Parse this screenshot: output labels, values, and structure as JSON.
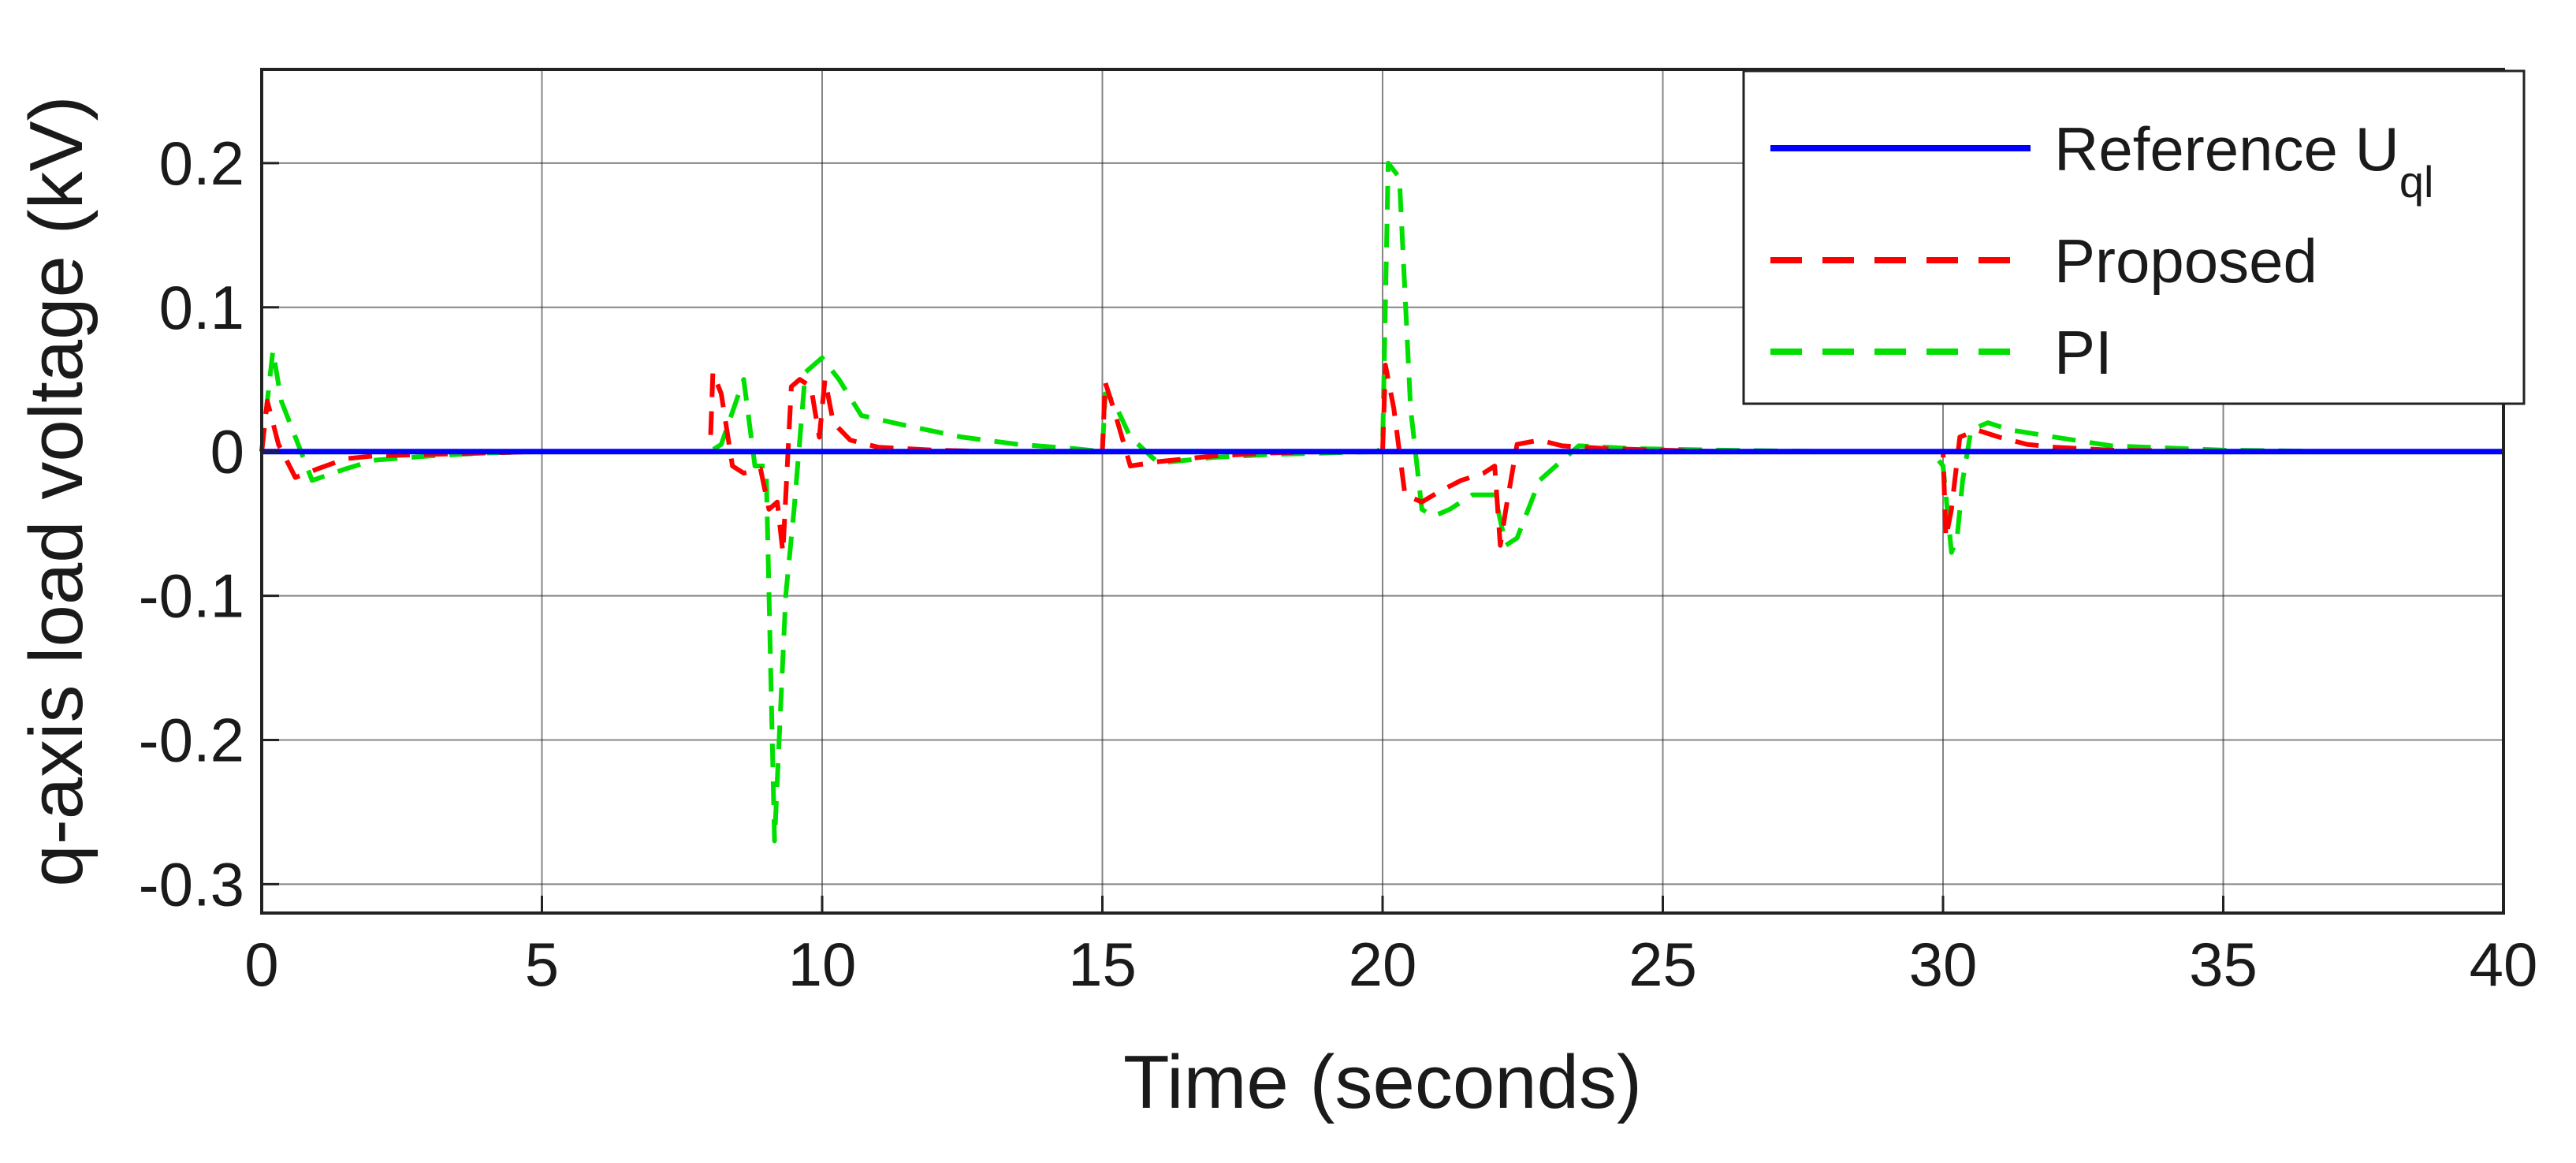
{
  "chart_data": {
    "type": "line",
    "xlabel": "Time (seconds)",
    "ylabel": "q-axis load voltage (kV)",
    "xlim": [
      0,
      40
    ],
    "ylim": [
      -0.32,
      0.265
    ],
    "xticks": [
      0,
      5,
      10,
      15,
      20,
      25,
      30,
      35,
      40
    ],
    "xtick_labels": [
      "0",
      "5",
      "10",
      "15",
      "20",
      "25",
      "30",
      "35",
      "40"
    ],
    "yticks": [
      -0.3,
      -0.2,
      -0.1,
      0,
      0.1,
      0.2
    ],
    "ytick_labels": [
      "-0.3",
      "-0.2",
      "-0.1",
      "0",
      "0.1",
      "0.2"
    ],
    "grid": true,
    "legend_position": "top-right",
    "series": [
      {
        "name": "Reference U",
        "name_subscript": "ql",
        "color": "#0000ff",
        "style": "solid",
        "x": [
          0,
          40
        ],
        "y": [
          0,
          0
        ]
      },
      {
        "name": "Proposed",
        "color": "#ff0000",
        "style": "dashed",
        "x": [
          0,
          0.1,
          0.3,
          0.6,
          1,
          1.5,
          2,
          3,
          4,
          5,
          6,
          7,
          7.9,
          8,
          8.05,
          8.2,
          8.4,
          8.6,
          8.9,
          9.05,
          9.2,
          9.3,
          9.45,
          9.6,
          9.8,
          9.95,
          10.05,
          10.2,
          10.5,
          11,
          12,
          13,
          14,
          14.9,
          15,
          15.05,
          15.2,
          15.5,
          16,
          17,
          18,
          19,
          19.9,
          20,
          20.05,
          20.2,
          20.4,
          20.7,
          21,
          21.4,
          21.8,
          22,
          22.1,
          22.2,
          22.4,
          22.8,
          23.2,
          24,
          25,
          26,
          27,
          28,
          29,
          29.9,
          30,
          30.05,
          30.15,
          30.3,
          30.6,
          31,
          31.5,
          32,
          33,
          35,
          37,
          40
        ],
        "y": [
          0,
          0.035,
          0.005,
          -0.018,
          -0.012,
          -0.005,
          -0.003,
          -0.002,
          -0.001,
          0,
          0,
          0,
          0,
          0,
          0.055,
          0.04,
          -0.01,
          -0.015,
          -0.012,
          -0.04,
          -0.035,
          -0.07,
          0.045,
          0.05,
          0.045,
          0.01,
          0.05,
          0.02,
          0.008,
          0.003,
          0.001,
          0,
          0,
          0,
          0,
          0.048,
          0.03,
          -0.01,
          -0.007,
          -0.003,
          -0.001,
          0,
          0,
          0,
          0.06,
          0.03,
          -0.03,
          -0.035,
          -0.028,
          -0.02,
          -0.015,
          -0.01,
          -0.065,
          -0.04,
          0.005,
          0.008,
          0.004,
          0.002,
          0.001,
          0,
          0,
          0,
          0,
          0,
          0,
          -0.06,
          -0.04,
          0.01,
          0.015,
          0.01,
          0.005,
          0.003,
          0.001,
          0,
          0,
          0
        ]
      },
      {
        "name": "PI",
        "color": "#00e000",
        "style": "dashed",
        "x": [
          0,
          0.2,
          0.35,
          0.6,
          0.9,
          1.5,
          2,
          3,
          4,
          5,
          6,
          7,
          7.9,
          8,
          8.2,
          8.6,
          8.8,
          9,
          9.15,
          9.35,
          9.5,
          9.7,
          10,
          10.3,
          10.7,
          11.5,
          12.5,
          13.5,
          14.5,
          15,
          15.05,
          15.2,
          15.5,
          16,
          17,
          18,
          19,
          19.9,
          20,
          20.1,
          20.3,
          20.5,
          20.7,
          20.9,
          21.2,
          21.6,
          22,
          22.2,
          22.4,
          22.8,
          23.5,
          24.5,
          26,
          28,
          29.5,
          29.8,
          30,
          30.15,
          30.25,
          30.35,
          30.5,
          30.8,
          31.2,
          32,
          33,
          35,
          37,
          40
        ],
        "y": [
          0,
          0.07,
          0.035,
          0.01,
          -0.02,
          -0.012,
          -0.006,
          -0.003,
          -0.001,
          0,
          0,
          0,
          0,
          0,
          0.005,
          0.05,
          -0.01,
          -0.01,
          -0.27,
          -0.1,
          -0.04,
          0.055,
          0.065,
          0.05,
          0.025,
          0.018,
          0.01,
          0.005,
          0.002,
          0,
          0.04,
          0.035,
          0.01,
          -0.008,
          -0.004,
          -0.002,
          -0.001,
          0,
          0.003,
          0.2,
          0.19,
          0.03,
          -0.04,
          -0.045,
          -0.04,
          -0.03,
          -0.03,
          -0.065,
          -0.06,
          -0.02,
          0.004,
          0.002,
          0.001,
          0,
          0,
          0,
          -0.01,
          -0.07,
          -0.06,
          -0.02,
          0.015,
          0.02,
          0.015,
          0.01,
          0.004,
          0.001,
          0,
          0
        ]
      }
    ]
  }
}
